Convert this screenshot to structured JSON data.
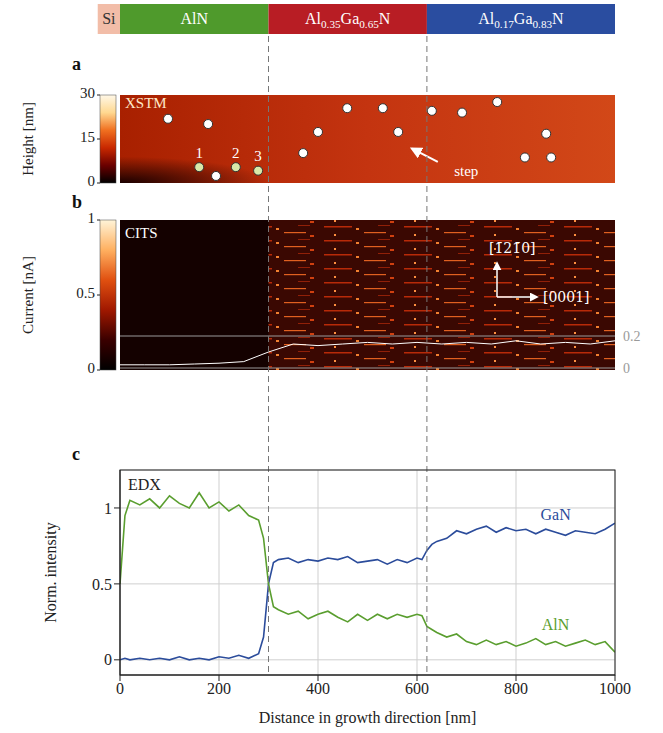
{
  "layers": [
    {
      "name": "Si",
      "from": -45,
      "to": 0,
      "color": "#f2bda8"
    },
    {
      "name": "AlN",
      "from": 0,
      "to": 300,
      "color": "#4f9a2c"
    },
    {
      "name": "Al0.35Ga0.65N",
      "from": 300,
      "to": 620,
      "color": "#b81d24"
    },
    {
      "name": "Al0.17Ga0.83N",
      "from": 620,
      "to": 1000,
      "color": "#2a4da0"
    }
  ],
  "boundaries": [
    300,
    620
  ],
  "panel_a": {
    "letter": "a",
    "text": "XSTM",
    "ylim": [
      0,
      1
    ],
    "colorbar": {
      "label": "Height [nm]",
      "range": [
        0,
        30
      ],
      "ticks": [
        0,
        15,
        30
      ],
      "colors": [
        "#000000",
        "#6a0000",
        "#c82800",
        "#f07020",
        "#ffd890",
        "#fff8e8"
      ]
    },
    "markers": [
      {
        "color": "#ffffff",
        "points": [
          {
            "x": 97,
            "y": 0.73
          },
          {
            "x": 178,
            "y": 0.67
          },
          {
            "x": 194,
            "y": 0.08
          },
          {
            "x": 370,
            "y": 0.34
          },
          {
            "x": 400,
            "y": 0.58
          },
          {
            "x": 459,
            "y": 0.85
          },
          {
            "x": 531,
            "y": 0.85
          },
          {
            "x": 562,
            "y": 0.58
          },
          {
            "x": 630,
            "y": 0.82
          },
          {
            "x": 691,
            "y": 0.8
          },
          {
            "x": 762,
            "y": 0.92
          },
          {
            "x": 818,
            "y": 0.29
          },
          {
            "x": 861,
            "y": 0.56
          },
          {
            "x": 871,
            "y": 0.29
          }
        ]
      },
      {
        "color": "#d9e8a8",
        "points": [
          {
            "x": 160,
            "y": 0.18,
            "label": "1"
          },
          {
            "x": 234,
            "y": 0.18,
            "label": "2"
          },
          {
            "x": 279,
            "y": 0.14,
            "label": "3"
          }
        ]
      }
    ],
    "annotation": {
      "text": "step",
      "x": 663,
      "y": 0.14,
      "arrow_from": [
        642,
        0.24
      ],
      "arrow_to": [
        590,
        0.39
      ]
    }
  },
  "panel_b": {
    "letter": "b",
    "text": "CITS",
    "colorbar": {
      "label": "Current [nA]",
      "range": [
        0,
        1
      ],
      "ticks": [
        0,
        0.5,
        1
      ],
      "colors": [
        "#000000",
        "#3a0000",
        "#a01800",
        "#e05010",
        "#ffb060",
        "#fff4d8"
      ]
    },
    "directions": [
      "[1̄21̄0]",
      "[0001]"
    ],
    "profile": {
      "x": [
        0,
        50,
        100,
        150,
        200,
        250,
        300,
        350,
        400,
        450,
        500,
        550,
        600,
        650,
        700,
        750,
        800,
        850,
        900,
        950,
        1000
      ],
      "values": [
        0.02,
        0.02,
        0.02,
        0.025,
        0.03,
        0.04,
        0.1,
        0.15,
        0.14,
        0.15,
        0.16,
        0.15,
        0.16,
        0.15,
        0.16,
        0.15,
        0.17,
        0.15,
        0.16,
        0.15,
        0.17
      ],
      "ylim": [
        0,
        0.2
      ],
      "yticks": [
        0,
        0.2
      ],
      "color": "#ffffff"
    }
  },
  "chart_data": {
    "type": "line",
    "letter": "c",
    "title": "EDX",
    "x": [
      0,
      10,
      20,
      40,
      60,
      80,
      100,
      120,
      140,
      160,
      180,
      200,
      220,
      240,
      260,
      280,
      290,
      300,
      310,
      320,
      340,
      360,
      380,
      400,
      420,
      440,
      460,
      480,
      500,
      520,
      540,
      560,
      580,
      600,
      610,
      620,
      630,
      640,
      660,
      680,
      700,
      720,
      740,
      760,
      780,
      800,
      820,
      840,
      860,
      880,
      900,
      920,
      940,
      960,
      980,
      1000
    ],
    "series": [
      {
        "name": "GaN",
        "color": "#2b4c9b",
        "values": [
          0,
          0.01,
          0,
          0.01,
          0,
          0.01,
          0,
          0.02,
          0,
          0.01,
          0,
          0.02,
          0.01,
          0.03,
          0.01,
          0.04,
          0.15,
          0.5,
          0.64,
          0.66,
          0.67,
          0.64,
          0.66,
          0.65,
          0.67,
          0.66,
          0.68,
          0.64,
          0.65,
          0.66,
          0.63,
          0.66,
          0.64,
          0.67,
          0.66,
          0.72,
          0.76,
          0.78,
          0.8,
          0.85,
          0.83,
          0.86,
          0.88,
          0.84,
          0.87,
          0.85,
          0.86,
          0.83,
          0.86,
          0.84,
          0.82,
          0.85,
          0.84,
          0.83,
          0.86,
          0.9
        ]
      },
      {
        "name": "AlN",
        "color": "#5a9e2f",
        "values": [
          0.5,
          0.95,
          1.05,
          1.02,
          1.06,
          1.0,
          1.08,
          1.03,
          1.0,
          1.1,
          1.0,
          1.04,
          0.98,
          1.02,
          0.95,
          0.92,
          0.8,
          0.5,
          0.35,
          0.33,
          0.3,
          0.32,
          0.27,
          0.3,
          0.32,
          0.28,
          0.25,
          0.3,
          0.26,
          0.3,
          0.27,
          0.3,
          0.28,
          0.3,
          0.29,
          0.22,
          0.2,
          0.18,
          0.15,
          0.17,
          0.12,
          0.1,
          0.13,
          0.1,
          0.12,
          0.09,
          0.11,
          0.14,
          0.1,
          0.12,
          0.09,
          0.11,
          0.13,
          0.1,
          0.12,
          0.05
        ]
      }
    ],
    "xlim": [
      0,
      1000
    ],
    "ylim": [
      -0.1,
      1.25
    ],
    "xticks": [
      0,
      200,
      400,
      600,
      800,
      1000
    ],
    "yticks": [
      0,
      0.5,
      1
    ],
    "xlabel": "Distance in growth direction [nm]",
    "ylabel": "Norm. intensity",
    "grid": true
  }
}
